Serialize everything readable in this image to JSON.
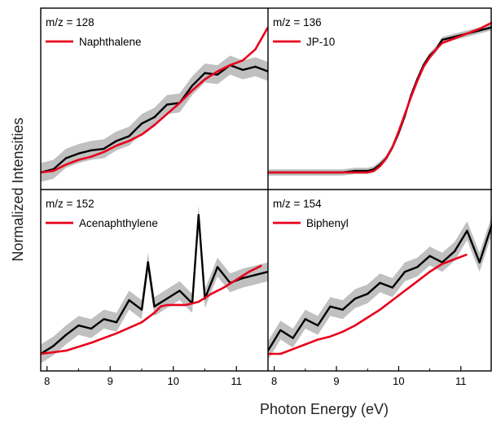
{
  "chart_data": {
    "type": "line",
    "xlabel": "Photon Energy (eV)",
    "ylabel": "Normalized Intensities",
    "xlim": [
      7.9,
      11.5
    ],
    "x_ticks": [
      8,
      9,
      10,
      11
    ],
    "x_tick_labels": [
      "8",
      "9",
      "10",
      "11"
    ],
    "y_ticks_shown": false,
    "layout": "2x2 panels sharing x axis",
    "colors": {
      "experiment": "#000000",
      "uncertainty_band": "#c0c0c0",
      "reference": "#e8001c",
      "frame": "#000000"
    },
    "panels": [
      {
        "label": "m/z = 128",
        "legend": "Naphthalene",
        "ylim": [
          0,
          1
        ],
        "reference_series": {
          "name": "Naphthalene",
          "x": [
            7.9,
            8.1,
            8.3,
            8.5,
            8.7,
            8.9,
            9.1,
            9.3,
            9.5,
            9.7,
            9.9,
            10.1,
            10.3,
            10.5,
            10.7,
            10.9,
            11.1,
            11.3,
            11.5
          ],
          "y": [
            0.0,
            0.01,
            0.05,
            0.08,
            0.1,
            0.13,
            0.17,
            0.2,
            0.24,
            0.3,
            0.37,
            0.44,
            0.52,
            0.59,
            0.64,
            0.68,
            0.71,
            0.78,
            0.92
          ]
        },
        "experiment_series": {
          "x": [
            7.9,
            8.1,
            8.3,
            8.5,
            8.7,
            8.9,
            9.1,
            9.3,
            9.5,
            9.7,
            9.9,
            10.1,
            10.3,
            10.5,
            10.7,
            10.9,
            11.1,
            11.3,
            11.5
          ],
          "y": [
            0.0,
            0.02,
            0.09,
            0.12,
            0.14,
            0.15,
            0.2,
            0.23,
            0.31,
            0.35,
            0.43,
            0.44,
            0.55,
            0.63,
            0.62,
            0.68,
            0.65,
            0.67,
            0.64
          ]
        }
      },
      {
        "label": "m/z = 136",
        "legend": "JP-10",
        "ylim": [
          0,
          1
        ],
        "reference_series": {
          "name": "JP-10",
          "x": [
            7.9,
            8.3,
            8.7,
            9.1,
            9.3,
            9.5,
            9.6,
            9.7,
            9.8,
            9.9,
            10.0,
            10.1,
            10.2,
            10.3,
            10.4,
            10.5,
            10.6,
            10.7,
            10.9,
            11.1,
            11.3,
            11.5
          ],
          "y": [
            0.0,
            0.0,
            0.0,
            0.0,
            0.0,
            0.0,
            0.01,
            0.04,
            0.09,
            0.16,
            0.26,
            0.37,
            0.48,
            0.58,
            0.67,
            0.73,
            0.78,
            0.82,
            0.85,
            0.88,
            0.91,
            0.95
          ]
        },
        "experiment_series": {
          "x": [
            7.9,
            8.3,
            8.7,
            9.1,
            9.3,
            9.5,
            9.6,
            9.7,
            9.8,
            9.9,
            10.0,
            10.1,
            10.2,
            10.3,
            10.4,
            10.5,
            10.6,
            10.7,
            10.9,
            11.1,
            11.3,
            11.5
          ],
          "y": [
            0.0,
            0.0,
            0.0,
            0.0,
            0.01,
            0.01,
            0.02,
            0.05,
            0.09,
            0.16,
            0.25,
            0.36,
            0.49,
            0.59,
            0.68,
            0.74,
            0.78,
            0.84,
            0.86,
            0.88,
            0.9,
            0.92
          ]
        }
      },
      {
        "label": "m/z = 152",
        "legend": "Acenaphthylene",
        "ylim": [
          0,
          1
        ],
        "reference_series": {
          "name": "Acenaphthylene",
          "x": [
            7.9,
            8.3,
            8.7,
            9.1,
            9.5,
            9.7,
            9.8,
            9.9,
            10.2,
            10.4,
            10.6,
            10.8,
            11.0,
            11.2,
            11.4
          ],
          "y": [
            0.0,
            0.02,
            0.07,
            0.13,
            0.2,
            0.26,
            0.3,
            0.31,
            0.31,
            0.33,
            0.38,
            0.42,
            0.47,
            0.52,
            0.56
          ]
        },
        "experiment_series": {
          "x": [
            7.9,
            8.1,
            8.3,
            8.5,
            8.7,
            8.9,
            9.1,
            9.3,
            9.5,
            9.6,
            9.7,
            9.9,
            10.1,
            10.3,
            10.4,
            10.5,
            10.7,
            10.9,
            11.1,
            11.3,
            11.5
          ],
          "y": [
            0.0,
            0.05,
            0.12,
            0.18,
            0.16,
            0.22,
            0.2,
            0.34,
            0.28,
            0.58,
            0.3,
            0.35,
            0.4,
            0.32,
            0.88,
            0.35,
            0.55,
            0.45,
            0.48,
            0.5,
            0.52
          ]
        }
      },
      {
        "label": "m/z = 154",
        "legend": "Biphenyl",
        "ylim": [
          0,
          1
        ],
        "reference_series": {
          "name": "Biphenyl",
          "x": [
            7.9,
            8.1,
            8.3,
            8.5,
            8.7,
            8.9,
            9.1,
            9.3,
            9.5,
            9.7,
            9.9,
            10.1,
            10.3,
            10.5,
            10.7,
            10.9,
            11.1
          ],
          "y": [
            0.0,
            0.0,
            0.03,
            0.06,
            0.09,
            0.11,
            0.14,
            0.18,
            0.23,
            0.28,
            0.34,
            0.4,
            0.46,
            0.52,
            0.57,
            0.6,
            0.63
          ]
        },
        "experiment_series": {
          "x": [
            7.9,
            8.1,
            8.3,
            8.5,
            8.7,
            8.9,
            9.1,
            9.3,
            9.5,
            9.7,
            9.9,
            10.1,
            10.3,
            10.5,
            10.7,
            10.9,
            11.1,
            11.3,
            11.5
          ],
          "y": [
            0.02,
            0.15,
            0.1,
            0.22,
            0.18,
            0.3,
            0.28,
            0.35,
            0.38,
            0.45,
            0.42,
            0.52,
            0.55,
            0.62,
            0.58,
            0.65,
            0.78,
            0.58,
            0.82
          ]
        }
      }
    ]
  }
}
